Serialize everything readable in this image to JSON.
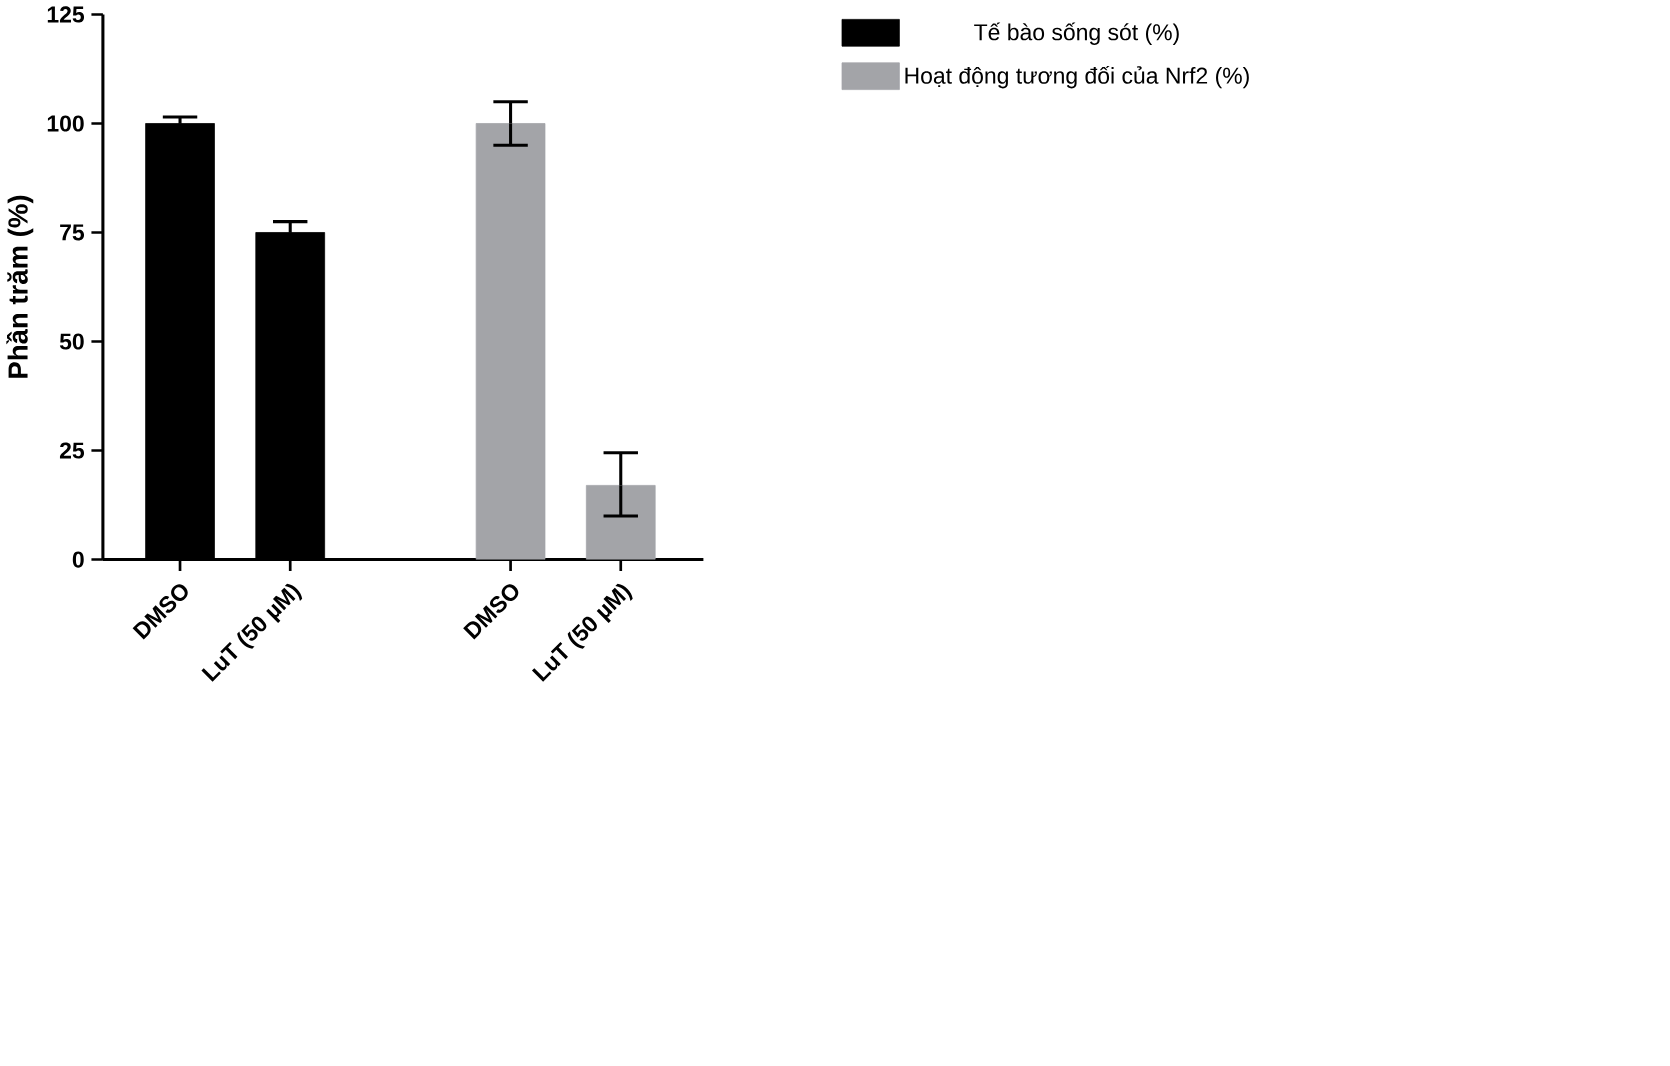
{
  "chart_data": {
    "type": "bar",
    "ylabel": "Phần trăm (%)",
    "categories": [
      "DMSO",
      "LuT (50 µM)",
      null,
      "DMSO",
      "LuT (50 µM)"
    ],
    "series": [
      {
        "name": "Tế bào sống sót (%)",
        "color": "#000000",
        "values": [
          100,
          75,
          null,
          null,
          null
        ],
        "errors": [
          1.5,
          2.5,
          null,
          null,
          null
        ]
      },
      {
        "name": "Hoạt động tương đối của Nrf2 (%)",
        "color": "#a3a4a8",
        "values": [
          null,
          null,
          null,
          100,
          17
        ],
        "errors": [
          null,
          null,
          null,
          5,
          [
            10,
            24.5
          ]
        ]
      }
    ],
    "ylim": [
      0,
      125
    ],
    "yticks": [
      0,
      25,
      50,
      75,
      100,
      125
    ],
    "legend": "top right",
    "grid": false
  }
}
